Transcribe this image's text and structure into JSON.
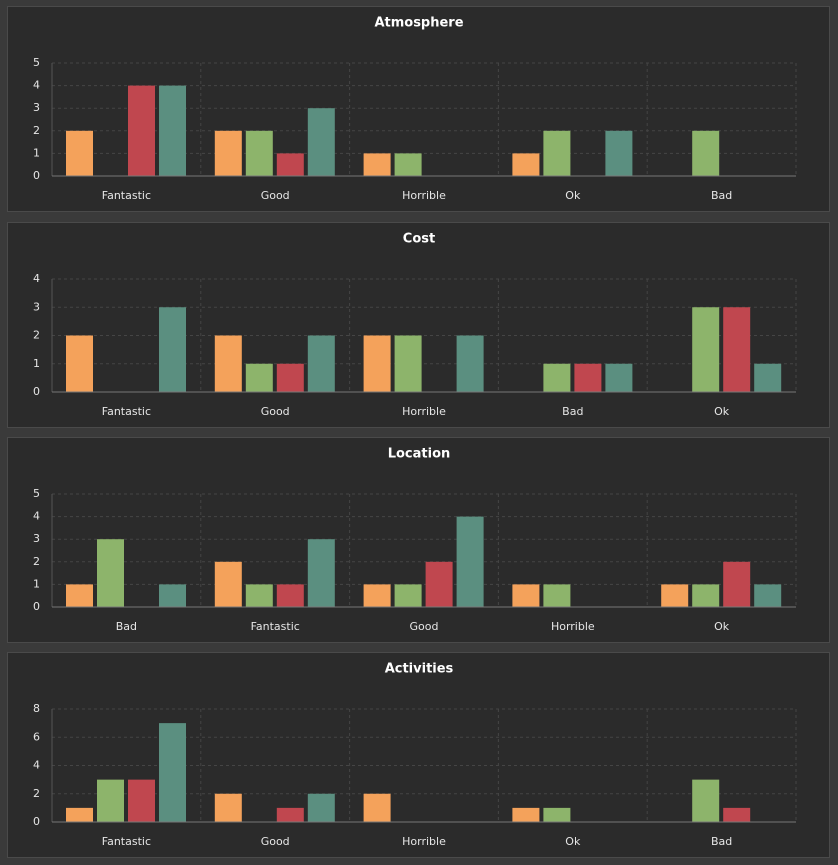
{
  "chart_data": [
    {
      "type": "bar",
      "title": "Atmosphere",
      "categories": [
        "Fantastic",
        "Good",
        "Horrible",
        "Ok",
        "Bad"
      ],
      "series": [
        {
          "color": "#f4a25b",
          "values": [
            2,
            2,
            1,
            1,
            0
          ]
        },
        {
          "color": "#8db46b",
          "values": [
            0,
            2,
            1,
            2,
            2
          ]
        },
        {
          "color": "#c0474f",
          "values": [
            4,
            1,
            0,
            0,
            0
          ]
        },
        {
          "color": "#5b8f80",
          "values": [
            4,
            3,
            0,
            2,
            0
          ]
        }
      ],
      "ylim": [
        0,
        5
      ],
      "yticks": [
        0,
        1,
        2,
        3,
        4,
        5
      ],
      "grid": true
    },
    {
      "type": "bar",
      "title": "Cost",
      "categories": [
        "Fantastic",
        "Good",
        "Horrible",
        "Bad",
        "Ok"
      ],
      "series": [
        {
          "color": "#f4a25b",
          "values": [
            2,
            2,
            2,
            0,
            0
          ]
        },
        {
          "color": "#8db46b",
          "values": [
            0,
            1,
            2,
            1,
            3
          ]
        },
        {
          "color": "#c0474f",
          "values": [
            0,
            1,
            0,
            1,
            3
          ]
        },
        {
          "color": "#5b8f80",
          "values": [
            3,
            2,
            2,
            1,
            1
          ]
        }
      ],
      "ylim": [
        0,
        4
      ],
      "yticks": [
        0,
        1,
        2,
        3,
        4
      ],
      "grid": true
    },
    {
      "type": "bar",
      "title": "Location",
      "categories": [
        "Bad",
        "Fantastic",
        "Good",
        "Horrible",
        "Ok"
      ],
      "series": [
        {
          "color": "#f4a25b",
          "values": [
            1,
            2,
            1,
            1,
            1
          ]
        },
        {
          "color": "#8db46b",
          "values": [
            3,
            1,
            1,
            1,
            1
          ]
        },
        {
          "color": "#c0474f",
          "values": [
            0,
            1,
            2,
            0,
            2
          ]
        },
        {
          "color": "#5b8f80",
          "values": [
            1,
            3,
            4,
            0,
            1
          ]
        }
      ],
      "ylim": [
        0,
        5
      ],
      "yticks": [
        0,
        1,
        2,
        3,
        4,
        5
      ],
      "grid": true
    },
    {
      "type": "bar",
      "title": "Activities",
      "categories": [
        "Fantastic",
        "Good",
        "Horrible",
        "Ok",
        "Bad"
      ],
      "series": [
        {
          "color": "#f4a25b",
          "values": [
            1,
            2,
            2,
            1,
            0
          ]
        },
        {
          "color": "#8db46b",
          "values": [
            3,
            0,
            0,
            1,
            3
          ]
        },
        {
          "color": "#c0474f",
          "values": [
            3,
            1,
            0,
            0,
            1
          ]
        },
        {
          "color": "#5b8f80",
          "values": [
            7,
            2,
            0,
            0,
            0
          ]
        }
      ],
      "ylim": [
        0,
        8
      ],
      "yticks": [
        0,
        2,
        4,
        6,
        8
      ],
      "grid": true
    }
  ]
}
